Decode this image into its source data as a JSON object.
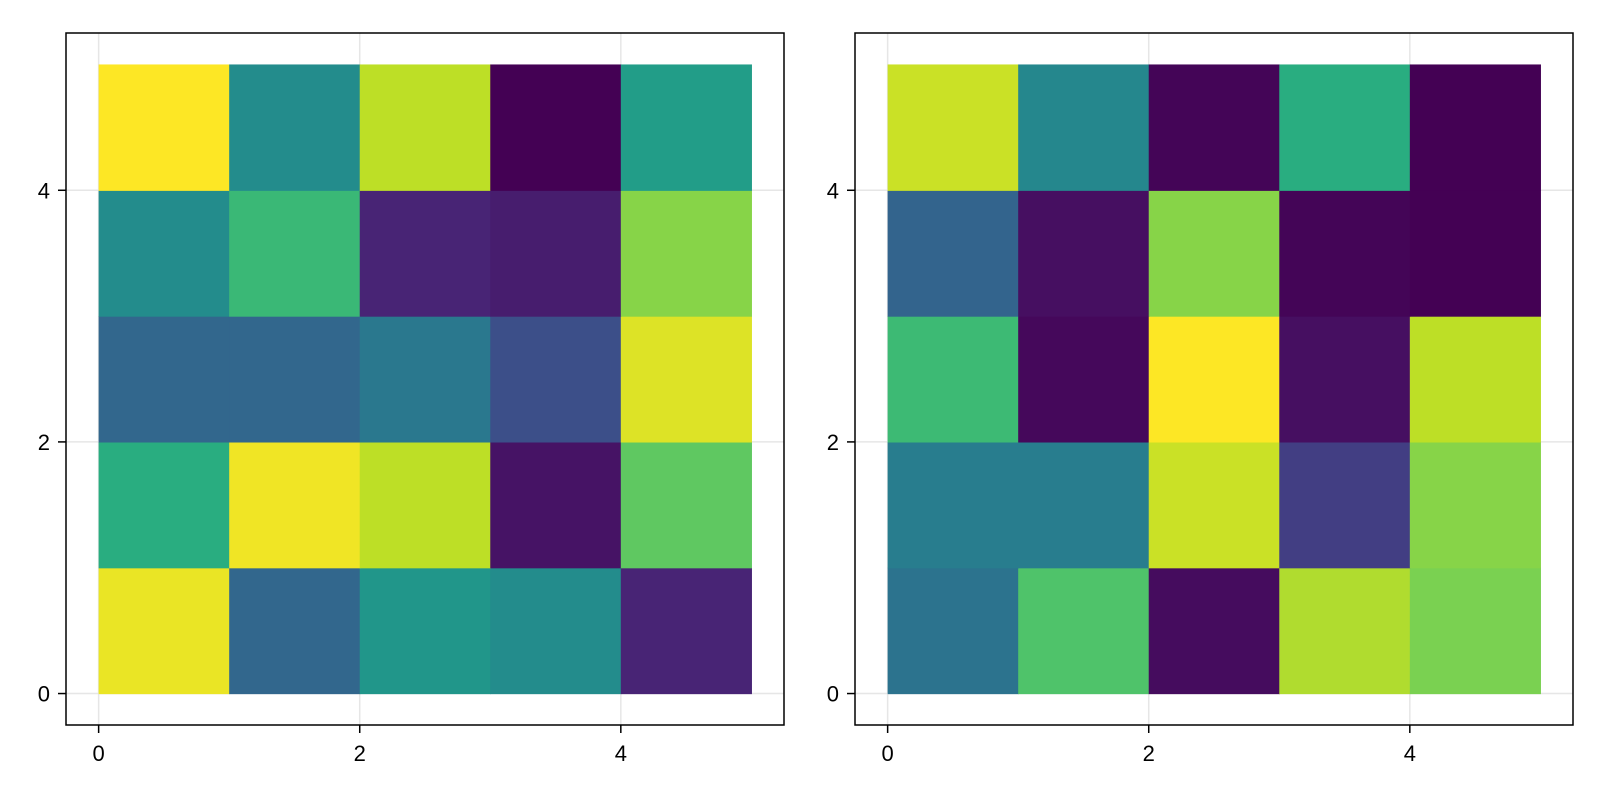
{
  "chart_data": [
    {
      "type": "heatmap",
      "x_edges": [
        0,
        1,
        2,
        3,
        4,
        5
      ],
      "y_edges": [
        0,
        1,
        2,
        3,
        4,
        5
      ],
      "xlim": [
        -0.25,
        5.25
      ],
      "ylim": [
        -0.25,
        5.25
      ],
      "xticks": [
        0,
        2,
        4
      ],
      "yticks": [
        0,
        2,
        4
      ],
      "grid": true,
      "colormap": "viridis",
      "color_range": [
        0,
        1
      ],
      "rows_bottom_to_top": [
        [
          0.97,
          0.33,
          0.52,
          0.48,
          0.1
        ],
        [
          0.62,
          0.98,
          0.9,
          0.05,
          0.75
        ],
        [
          0.33,
          0.33,
          0.4,
          0.24,
          0.95
        ],
        [
          0.48,
          0.67,
          0.1,
          0.08,
          0.82
        ],
        [
          1.0,
          0.48,
          0.9,
          0.0,
          0.55
        ]
      ]
    },
    {
      "type": "heatmap",
      "x_edges": [
        0,
        1,
        2,
        3,
        4,
        5
      ],
      "y_edges": [
        0,
        1,
        2,
        3,
        4,
        5
      ],
      "xlim": [
        -0.25,
        5.25
      ],
      "ylim": [
        -0.25,
        5.25
      ],
      "xticks": [
        0,
        2,
        4
      ],
      "yticks": [
        0,
        2,
        4
      ],
      "grid": true,
      "colormap": "viridis",
      "color_range": [
        0,
        1
      ],
      "rows_bottom_to_top": [
        [
          0.38,
          0.72,
          0.03,
          0.88,
          0.8
        ],
        [
          0.42,
          0.42,
          0.92,
          0.18,
          0.82
        ],
        [
          0.68,
          0.02,
          1.0,
          0.04,
          0.9
        ],
        [
          0.32,
          0.04,
          0.82,
          0.01,
          0.0
        ],
        [
          0.92,
          0.46,
          0.01,
          0.62,
          0.0
        ]
      ]
    }
  ]
}
